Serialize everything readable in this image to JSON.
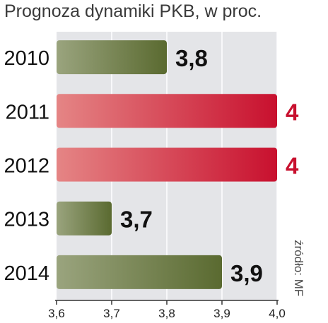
{
  "chart_data": {
    "type": "bar",
    "orientation": "horizontal",
    "title": "Prognoza dynamiki PKB, w proc.",
    "source": "źródło: MF",
    "categories": [
      "2010",
      "2011",
      "2012",
      "2013",
      "2014"
    ],
    "values": [
      3.8,
      4.0,
      4.0,
      3.7,
      3.9
    ],
    "value_labels": [
      "3,8",
      "4",
      "4",
      "3,7",
      "3,9"
    ],
    "bar_colors": [
      "olive",
      "red",
      "red",
      "olive",
      "olive"
    ],
    "xlim": [
      3.6,
      4.0
    ],
    "xticks": [
      3.6,
      3.7,
      3.8,
      3.9,
      4.0
    ],
    "xtick_labels": [
      "3,6",
      "3,7",
      "3,8",
      "3,9",
      "4,0"
    ],
    "grid": true
  },
  "colors": {
    "olive_dark": "#5a6a30",
    "olive_light": "#9aa47e",
    "red_dark": "#c8102e",
    "red_light": "#e58585",
    "panel_bg": "#e4e5e8",
    "grid_line": "#ffffff",
    "label_olive": "#111111",
    "label_red": "#c8102e"
  }
}
